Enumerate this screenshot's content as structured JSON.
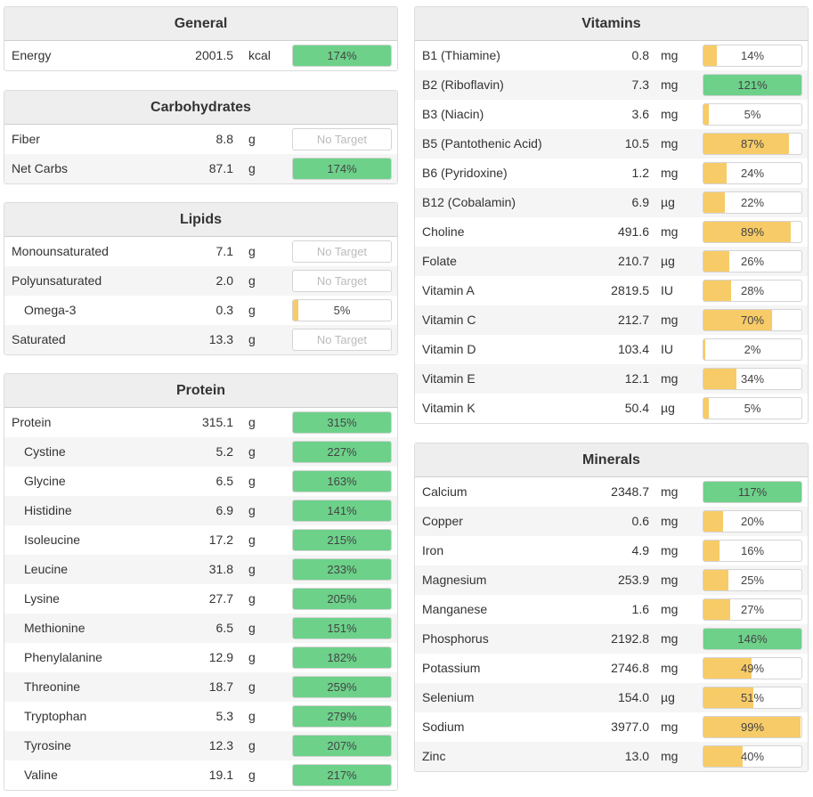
{
  "colors": {
    "green": "#6dd18a",
    "yellow": "#f7cb67",
    "none": "#ffffff"
  },
  "general": {
    "title": "General",
    "rows": [
      {
        "name": "Energy",
        "amount": "2001.5",
        "unit": "kcal",
        "pct": 174,
        "label": "174%"
      }
    ]
  },
  "carbohydrates": {
    "title": "Carbohydrates",
    "rows": [
      {
        "name": "Fiber",
        "amount": "8.8",
        "unit": "g",
        "pct": null,
        "label": "No Target"
      },
      {
        "name": "Net Carbs",
        "amount": "87.1",
        "unit": "g",
        "pct": 174,
        "label": "174%"
      }
    ]
  },
  "lipids": {
    "title": "Lipids",
    "rows": [
      {
        "name": "Monounsaturated",
        "amount": "7.1",
        "unit": "g",
        "pct": null,
        "label": "No Target"
      },
      {
        "name": "Polyunsaturated",
        "amount": "2.0",
        "unit": "g",
        "pct": null,
        "label": "No Target"
      },
      {
        "name": "Omega-3",
        "amount": "0.3",
        "unit": "g",
        "pct": 5,
        "label": "5%",
        "indent": true
      },
      {
        "name": "Saturated",
        "amount": "13.3",
        "unit": "g",
        "pct": null,
        "label": "No Target"
      }
    ]
  },
  "protein": {
    "title": "Protein",
    "rows": [
      {
        "name": "Protein",
        "amount": "315.1",
        "unit": "g",
        "pct": 315,
        "label": "315%"
      },
      {
        "name": "Cystine",
        "amount": "5.2",
        "unit": "g",
        "pct": 227,
        "label": "227%",
        "indent": true
      },
      {
        "name": "Glycine",
        "amount": "6.5",
        "unit": "g",
        "pct": 163,
        "label": "163%",
        "indent": true
      },
      {
        "name": "Histidine",
        "amount": "6.9",
        "unit": "g",
        "pct": 141,
        "label": "141%",
        "indent": true
      },
      {
        "name": "Isoleucine",
        "amount": "17.2",
        "unit": "g",
        "pct": 215,
        "label": "215%",
        "indent": true
      },
      {
        "name": "Leucine",
        "amount": "31.8",
        "unit": "g",
        "pct": 233,
        "label": "233%",
        "indent": true
      },
      {
        "name": "Lysine",
        "amount": "27.7",
        "unit": "g",
        "pct": 205,
        "label": "205%",
        "indent": true
      },
      {
        "name": "Methionine",
        "amount": "6.5",
        "unit": "g",
        "pct": 151,
        "label": "151%",
        "indent": true
      },
      {
        "name": "Phenylalanine",
        "amount": "12.9",
        "unit": "g",
        "pct": 182,
        "label": "182%",
        "indent": true
      },
      {
        "name": "Threonine",
        "amount": "18.7",
        "unit": "g",
        "pct": 259,
        "label": "259%",
        "indent": true
      },
      {
        "name": "Tryptophan",
        "amount": "5.3",
        "unit": "g",
        "pct": 279,
        "label": "279%",
        "indent": true
      },
      {
        "name": "Tyrosine",
        "amount": "12.3",
        "unit": "g",
        "pct": 207,
        "label": "207%",
        "indent": true
      },
      {
        "name": "Valine",
        "amount": "19.1",
        "unit": "g",
        "pct": 217,
        "label": "217%",
        "indent": true
      }
    ]
  },
  "vitamins": {
    "title": "Vitamins",
    "rows": [
      {
        "name": "B1 (Thiamine)",
        "amount": "0.8",
        "unit": "mg",
        "pct": 14,
        "label": "14%"
      },
      {
        "name": "B2 (Riboflavin)",
        "amount": "7.3",
        "unit": "mg",
        "pct": 121,
        "label": "121%"
      },
      {
        "name": "B3 (Niacin)",
        "amount": "3.6",
        "unit": "mg",
        "pct": 5,
        "label": "5%"
      },
      {
        "name": "B5 (Pantothenic Acid)",
        "amount": "10.5",
        "unit": "mg",
        "pct": 87,
        "label": "87%"
      },
      {
        "name": "B6 (Pyridoxine)",
        "amount": "1.2",
        "unit": "mg",
        "pct": 24,
        "label": "24%"
      },
      {
        "name": "B12 (Cobalamin)",
        "amount": "6.9",
        "unit": "µg",
        "pct": 22,
        "label": "22%"
      },
      {
        "name": "Choline",
        "amount": "491.6",
        "unit": "mg",
        "pct": 89,
        "label": "89%"
      },
      {
        "name": "Folate",
        "amount": "210.7",
        "unit": "µg",
        "pct": 26,
        "label": "26%"
      },
      {
        "name": "Vitamin A",
        "amount": "2819.5",
        "unit": "IU",
        "pct": 28,
        "label": "28%"
      },
      {
        "name": "Vitamin C",
        "amount": "212.7",
        "unit": "mg",
        "pct": 70,
        "label": "70%"
      },
      {
        "name": "Vitamin D",
        "amount": "103.4",
        "unit": "IU",
        "pct": 2,
        "label": "2%"
      },
      {
        "name": "Vitamin E",
        "amount": "12.1",
        "unit": "mg",
        "pct": 34,
        "label": "34%"
      },
      {
        "name": "Vitamin K",
        "amount": "50.4",
        "unit": "µg",
        "pct": 5,
        "label": "5%"
      }
    ]
  },
  "minerals": {
    "title": "Minerals",
    "rows": [
      {
        "name": "Calcium",
        "amount": "2348.7",
        "unit": "mg",
        "pct": 117,
        "label": "117%"
      },
      {
        "name": "Copper",
        "amount": "0.6",
        "unit": "mg",
        "pct": 20,
        "label": "20%"
      },
      {
        "name": "Iron",
        "amount": "4.9",
        "unit": "mg",
        "pct": 16,
        "label": "16%"
      },
      {
        "name": "Magnesium",
        "amount": "253.9",
        "unit": "mg",
        "pct": 25,
        "label": "25%"
      },
      {
        "name": "Manganese",
        "amount": "1.6",
        "unit": "mg",
        "pct": 27,
        "label": "27%"
      },
      {
        "name": "Phosphorus",
        "amount": "2192.8",
        "unit": "mg",
        "pct": 146,
        "label": "146%"
      },
      {
        "name": "Potassium",
        "amount": "2746.8",
        "unit": "mg",
        "pct": 49,
        "label": "49%"
      },
      {
        "name": "Selenium",
        "amount": "154.0",
        "unit": "µg",
        "pct": 51,
        "label": "51%"
      },
      {
        "name": "Sodium",
        "amount": "3977.0",
        "unit": "mg",
        "pct": 99,
        "label": "99%"
      },
      {
        "name": "Zinc",
        "amount": "13.0",
        "unit": "mg",
        "pct": 40,
        "label": "40%"
      }
    ]
  }
}
